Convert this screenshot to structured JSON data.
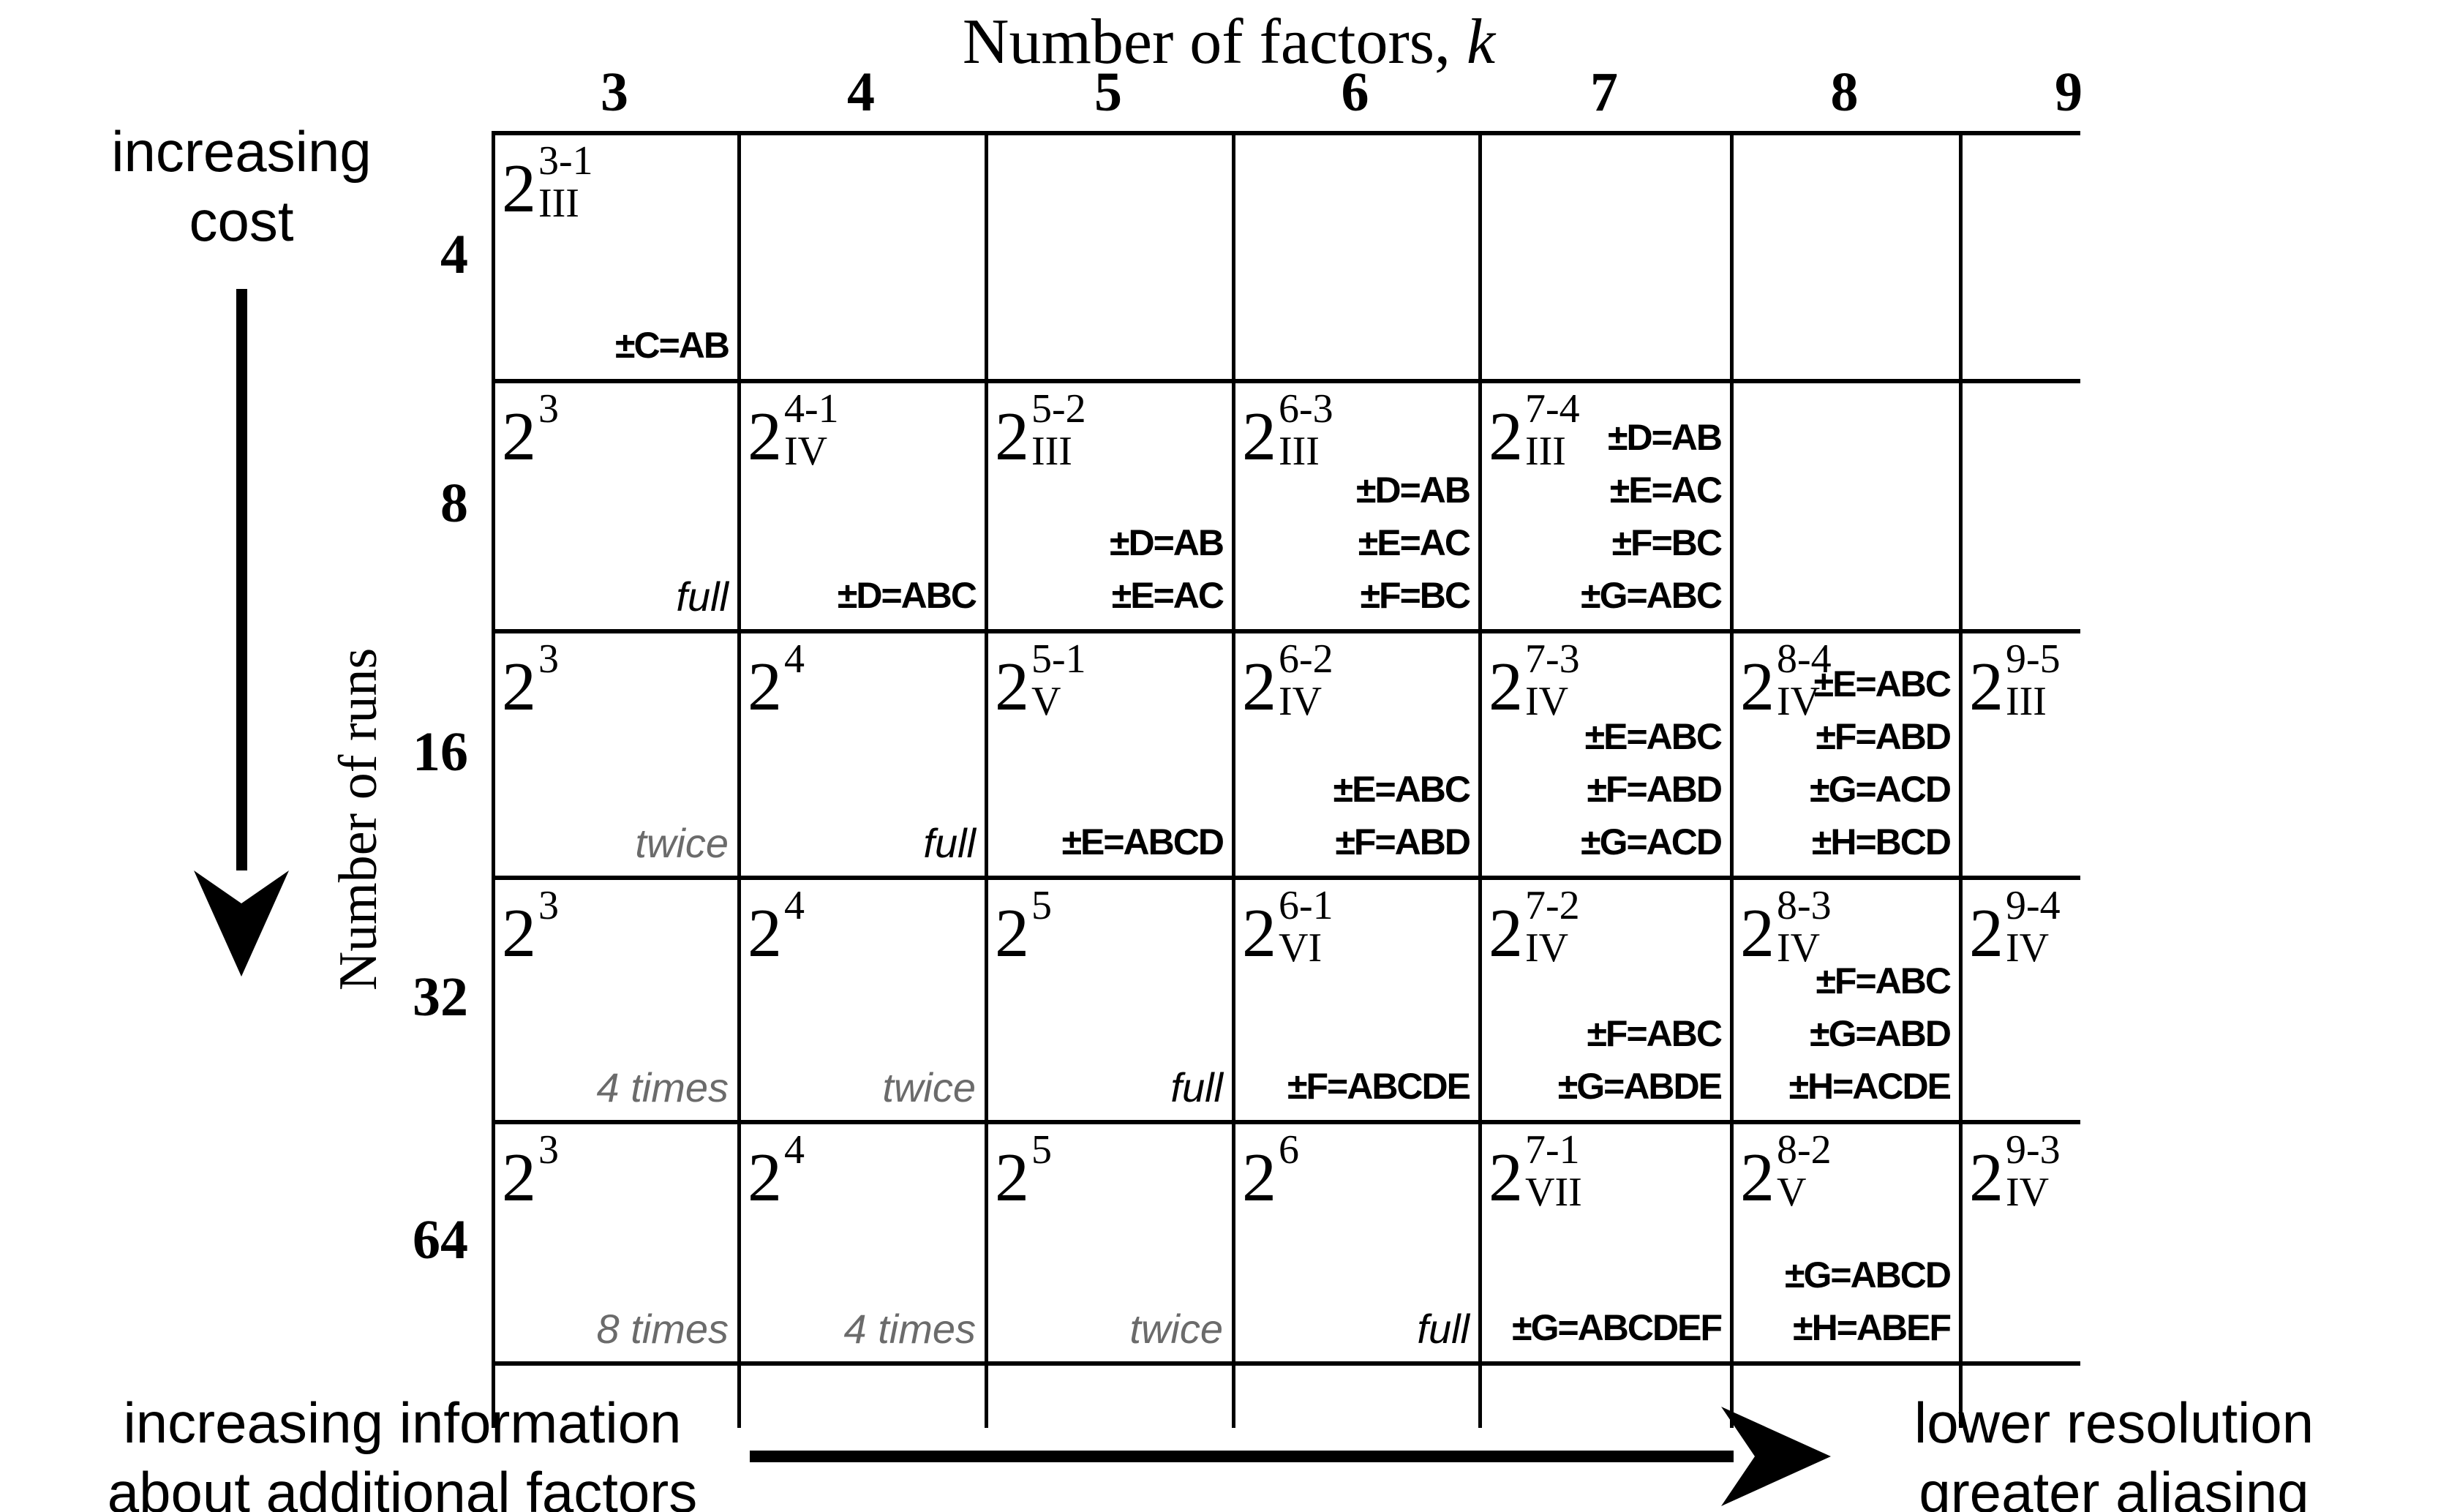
{
  "title": {
    "text": "Number of factors, ",
    "symbol": "k"
  },
  "cost_label": {
    "line1": "increasing",
    "line2": "cost"
  },
  "runs_axis_label": "Number of runs",
  "column_headers": [
    "3",
    "4",
    "5",
    "6",
    "7",
    "8",
    "9"
  ],
  "rows": [
    {
      "runs": "4",
      "cells": [
        {
          "base": "2",
          "sup": "3-1",
          "sub": "III",
          "generators": [
            "±C=AB"
          ]
        },
        null,
        null,
        null,
        null,
        null,
        null
      ]
    },
    {
      "runs": "8",
      "cells": [
        {
          "base": "2",
          "sup": "3",
          "replicate": "full",
          "gray": false
        },
        {
          "base": "2",
          "sup": "4-1",
          "sub": "IV",
          "generators": [
            "±D=ABC"
          ]
        },
        {
          "base": "2",
          "sup": "5-2",
          "sub": "III",
          "generators": [
            "±D=AB",
            "±E=AC"
          ]
        },
        {
          "base": "2",
          "sup": "6-3",
          "sub": "III",
          "generators": [
            "±D=AB",
            "±E=AC",
            "±F=BC"
          ]
        },
        {
          "base": "2",
          "sup": "7-4",
          "sub": "III",
          "generators": [
            "±D=AB",
            "±E=AC",
            "±F=BC",
            "±G=ABC"
          ]
        },
        null,
        null
      ]
    },
    {
      "runs": "16",
      "cells": [
        {
          "base": "2",
          "sup": "3",
          "replicate": "twice",
          "gray": true
        },
        {
          "base": "2",
          "sup": "4",
          "replicate": "full",
          "gray": false
        },
        {
          "base": "2",
          "sup": "5-1",
          "sub": "V",
          "generators": [
            "±E=ABCD"
          ]
        },
        {
          "base": "2",
          "sup": "6-2",
          "sub": "IV",
          "generators": [
            "±E=ABC",
            "±F=ABD"
          ]
        },
        {
          "base": "2",
          "sup": "7-3",
          "sub": "IV",
          "generators": [
            "±E=ABC",
            "±F=ABD",
            "±G=ACD"
          ]
        },
        {
          "base": "2",
          "sup": "8-4",
          "sub": "IV",
          "generators": [
            "±E=ABC",
            "±F=ABD",
            "±G=ACD",
            "±H=BCD"
          ]
        },
        {
          "base": "2",
          "sup": "9-5",
          "sub": "III"
        }
      ]
    },
    {
      "runs": "32",
      "cells": [
        {
          "base": "2",
          "sup": "3",
          "replicate": "4 times",
          "gray": true
        },
        {
          "base": "2",
          "sup": "4",
          "replicate": "twice",
          "gray": true
        },
        {
          "base": "2",
          "sup": "5",
          "replicate": "full",
          "gray": false
        },
        {
          "base": "2",
          "sup": "6-1",
          "sub": "VI",
          "generators": [
            "±F=ABCDE"
          ]
        },
        {
          "base": "2",
          "sup": "7-2",
          "sub": "IV",
          "generators": [
            "±F=ABC",
            "±G=ABDE"
          ]
        },
        {
          "base": "2",
          "sup": "8-3",
          "sub": "IV",
          "generators": [
            "±F=ABC",
            "±G=ABD",
            "±H=ACDE"
          ]
        },
        {
          "base": "2",
          "sup": "9-4",
          "sub": "IV"
        }
      ]
    },
    {
      "runs": "64",
      "cells": [
        {
          "base": "2",
          "sup": "3",
          "replicate": "8 times",
          "gray": true
        },
        {
          "base": "2",
          "sup": "4",
          "replicate": "4 times",
          "gray": true
        },
        {
          "base": "2",
          "sup": "5",
          "replicate": "twice",
          "gray": true
        },
        {
          "base": "2",
          "sup": "6",
          "replicate": "full",
          "gray": false
        },
        {
          "base": "2",
          "sup": "7-1",
          "sub": "VII",
          "generators": [
            "±G=ABCDEF"
          ]
        },
        {
          "base": "2",
          "sup": "8-2",
          "sub": "V",
          "generators": [
            "±G=ABCD",
            "±H=ABEF"
          ]
        },
        {
          "base": "2",
          "sup": "9-3",
          "sub": "IV"
        }
      ]
    }
  ],
  "bottom_left_label": {
    "line1": "increasing information",
    "line2": "about additional factors"
  },
  "bottom_right_label": {
    "line1": "lower resolution",
    "line2": "greater aliasing"
  },
  "colors": {
    "ink": "#000000",
    "replicate_gray": "#6b6b6b"
  }
}
